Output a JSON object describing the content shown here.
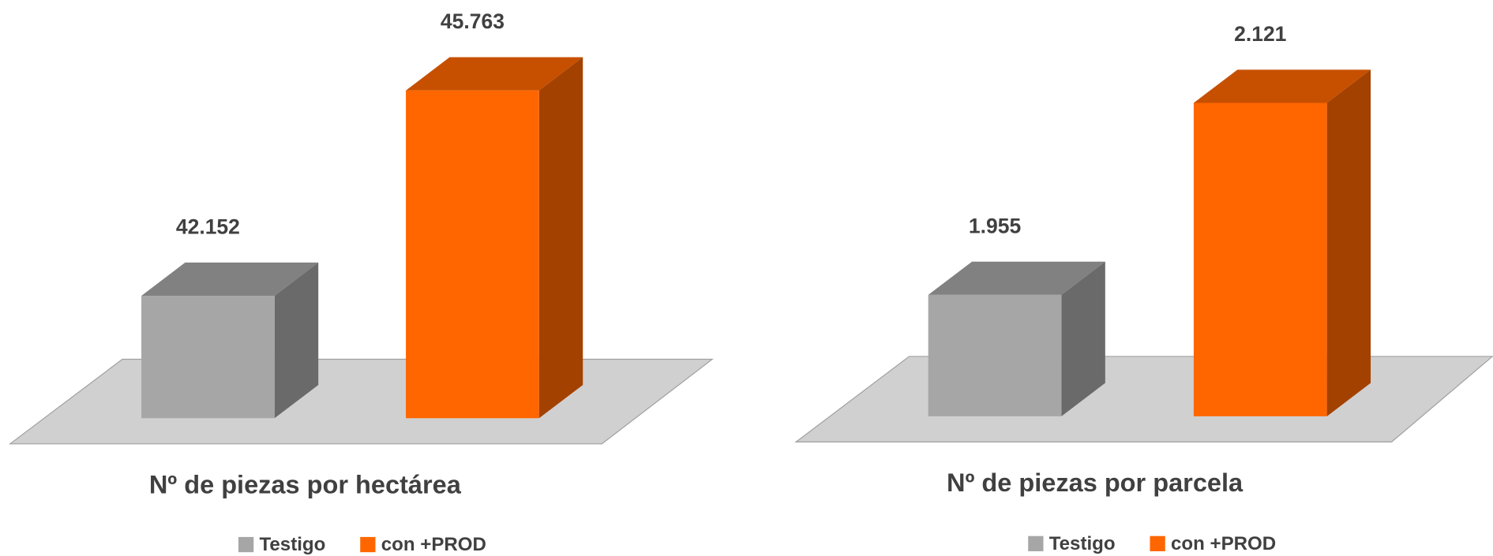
{
  "chart_data": [
    {
      "type": "bar",
      "title": "Nº de piezas por hectárea",
      "ylim": [
        40000,
        46000
      ],
      "series": [
        {
          "name": "Testigo",
          "color": "#a6a6a6",
          "values": [
            42152
          ],
          "value_labels": [
            "42.152"
          ]
        },
        {
          "name": "con +PROD",
          "color": "#ff6600",
          "values": [
            45763
          ],
          "value_labels": [
            "45.763"
          ]
        }
      ]
    },
    {
      "type": "bar",
      "title": "Nº de piezas por parcela",
      "ylim": [
        1850,
        2150
      ],
      "series": [
        {
          "name": "Testigo",
          "color": "#a6a6a6",
          "values": [
            1955
          ],
          "value_labels": [
            "1.955"
          ]
        },
        {
          "name": "con +PROD",
          "color": "#ff6600",
          "values": [
            2121
          ],
          "value_labels": [
            "2.121"
          ]
        }
      ]
    }
  ]
}
